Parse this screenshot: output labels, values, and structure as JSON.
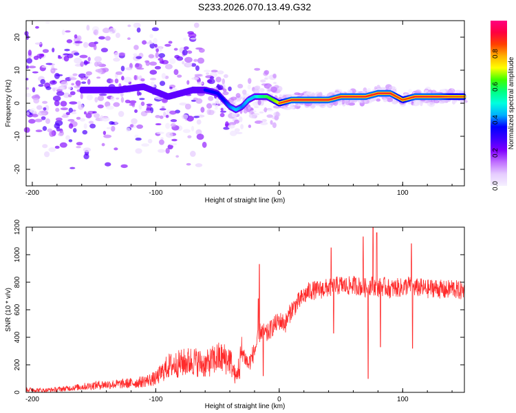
{
  "figure_title": "S233.2026.070.13.49.G32",
  "chart_data": [
    {
      "type": "heatmap",
      "name": "spectrogram",
      "xlabel": "Height of straight line (km)",
      "ylabel": "Frequency (Hz)",
      "xlim": [
        -205,
        150
      ],
      "ylim": [
        -25,
        25
      ],
      "xticks": [
        -200,
        -100,
        0,
        100
      ],
      "yticks": [
        20,
        10,
        0,
        -10,
        -20
      ],
      "colorbar": {
        "label": "Normalized spectral amplitude",
        "range": [
          0,
          1
        ],
        "ticks": [
          0.0,
          0.2,
          0.4,
          0.6,
          0.8
        ],
        "colormap": [
          "#f5f0ff",
          "#e6ccff",
          "#c070ff",
          "#8000ff",
          "#3c00ff",
          "#0000ff",
          "#00b0ff",
          "#00ffe0",
          "#00ff80",
          "#40ff00",
          "#ffff00",
          "#ffb000",
          "#ff4000",
          "#ff0040",
          "#ff0080"
        ]
      },
      "ridge": {
        "x": [
          -150,
          -130,
          -110,
          -90,
          -70,
          -60,
          -50,
          -45,
          -40,
          -35,
          -30,
          -25,
          -20,
          -15,
          -10,
          -5,
          0,
          10,
          20,
          30,
          40,
          50,
          60,
          70,
          80,
          90,
          100,
          110,
          120,
          130,
          140,
          150
        ],
        "y": [
          4,
          4,
          5,
          2,
          4,
          4,
          3,
          1,
          -1,
          -2,
          -1,
          1,
          2,
          2,
          2,
          1,
          0,
          1,
          1,
          1,
          1,
          2,
          2,
          2,
          3,
          3,
          1,
          2,
          2,
          2,
          2,
          2
        ],
        "amplitude": [
          0.3,
          0.3,
          0.35,
          0.4,
          0.5,
          0.5,
          0.5,
          0.5,
          0.55,
          0.6,
          0.55,
          0.6,
          0.6,
          0.7,
          0.75,
          0.8,
          0.85,
          0.9,
          0.9,
          0.9,
          0.9,
          0.9,
          0.9,
          0.9,
          0.9,
          0.9,
          0.85,
          0.9,
          0.9,
          0.9,
          0.85,
          0.85
        ]
      }
    },
    {
      "type": "line",
      "name": "snr",
      "xlabel": "Height of straight line (km)",
      "ylabel": "SNR (10 * v/v)",
      "xlim": [
        -205,
        150
      ],
      "ylim": [
        0,
        1200
      ],
      "xticks": [
        -200,
        -100,
        0,
        100
      ],
      "yticks": [
        0,
        200,
        400,
        600,
        800,
        1000,
        1200
      ],
      "series": [
        {
          "name": "SNR",
          "color": "#ff2b2b",
          "x": [
            -205,
            -190,
            -175,
            -160,
            -145,
            -130,
            -115,
            -100,
            -90,
            -80,
            -70,
            -60,
            -50,
            -40,
            -35,
            -30,
            -25,
            -20,
            -15,
            -10,
            -5,
            0,
            5,
            10,
            15,
            20,
            25,
            30,
            35,
            40,
            45,
            50,
            55,
            60,
            65,
            70,
            75,
            80,
            85,
            90,
            95,
            100,
            105,
            110,
            115,
            120,
            125,
            130,
            135,
            140,
            145,
            150
          ],
          "y": [
            20,
            15,
            25,
            40,
            55,
            60,
            70,
            100,
            190,
            210,
            230,
            200,
            250,
            240,
            100,
            300,
            200,
            300,
            450,
            420,
            480,
            520,
            500,
            600,
            650,
            700,
            740,
            740,
            750,
            760,
            770,
            780,
            770,
            780,
            770,
            760,
            780,
            760,
            770,
            750,
            760,
            760,
            780,
            760,
            760,
            750,
            760,
            750,
            740,
            760,
            740,
            740
          ],
          "spikes": [
            {
              "x": -42,
              "y": 200
            },
            {
              "x": -32,
              "y": 100
            },
            {
              "x": -17,
              "y": 680
            },
            {
              "x": -16,
              "y": 930
            },
            {
              "x": -13,
              "y": 120
            },
            {
              "x": 42,
              "y": 1050
            },
            {
              "x": 44,
              "y": 430
            },
            {
              "x": 68,
              "y": 1130
            },
            {
              "x": 72,
              "y": 100
            },
            {
              "x": 76,
              "y": 1300
            },
            {
              "x": 79,
              "y": 1160
            },
            {
              "x": 82,
              "y": 330
            },
            {
              "x": 107,
              "y": 1080
            },
            {
              "x": 108,
              "y": 320
            }
          ]
        }
      ]
    }
  ]
}
